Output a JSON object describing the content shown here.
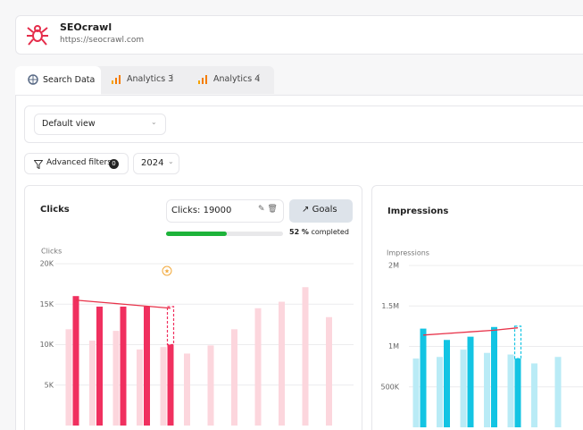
{
  "header": {
    "brand": "SEOcrawl",
    "url": "https://seocrawl.com"
  },
  "tabs": [
    "Search Data",
    "Analytics 3",
    "Analytics 4"
  ],
  "view_select": "Default view",
  "filters": {
    "label": "Advanced filters",
    "count": 0,
    "year": "2024"
  },
  "clicks_panel": {
    "title": "Clicks",
    "goal_input": "Clicks: 19000",
    "goal_button": "Goals",
    "progress": {
      "value": 52,
      "label": "52 %",
      "suffix": "completed",
      "color": "#1db33a"
    },
    "chart_data": {
      "type": "bar",
      "y_label": "Clicks",
      "ylim": [
        0,
        20000
      ],
      "yticks": [
        {
          "value": 5000,
          "label": "5K"
        },
        {
          "value": 10000,
          "label": "10K"
        },
        {
          "value": 15000,
          "label": "15K"
        },
        {
          "value": 20000,
          "label": "20K"
        }
      ],
      "grid": true,
      "series": [
        {
          "color": "#fcd6dd",
          "values": [
            11900,
            10500,
            11700,
            9400,
            9700,
            8900,
            9900,
            11900,
            14500,
            15300,
            17100,
            13400
          ]
        },
        {
          "color": "#f0305f",
          "values": [
            16000,
            14700,
            14700,
            14700,
            10000,
            null,
            null,
            null,
            null,
            null,
            null,
            null
          ]
        }
      ],
      "projected_values": [
        null,
        null,
        null,
        null,
        14700,
        null,
        null,
        null,
        null,
        null,
        null,
        null
      ],
      "trend": {
        "color": "#e8334a",
        "values": [
          15500,
          15250,
          15000,
          14750,
          14500
        ]
      }
    }
  },
  "impressions_panel": {
    "title": "Impressions",
    "chart_data": {
      "type": "bar",
      "y_label": "Impressions",
      "ylim": [
        0,
        2000000
      ],
      "yticks": [
        {
          "value": 500000,
          "label": "500K"
        },
        {
          "value": 1000000,
          "label": "1M"
        },
        {
          "value": 1500000,
          "label": "1.5M"
        },
        {
          "value": 2000000,
          "label": "2M"
        }
      ],
      "grid": true,
      "series": [
        {
          "color": "#b9ebf6",
          "values": [
            850000,
            870000,
            960000,
            920000,
            900000,
            790000,
            870000
          ]
        },
        {
          "color": "#13c4e3",
          "values": [
            1220000,
            1080000,
            1120000,
            1240000,
            850000,
            null,
            null
          ]
        }
      ],
      "projected_values": [
        null,
        null,
        null,
        null,
        1250000,
        null,
        null
      ],
      "trend": {
        "color": "#e8334a",
        "values": [
          1140000,
          1160000,
          1180000,
          1200000,
          1230000
        ]
      }
    }
  }
}
